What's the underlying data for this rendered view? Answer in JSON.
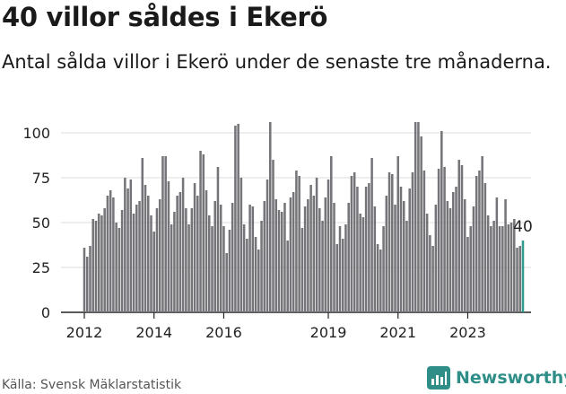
{
  "header": {
    "title": "40 villor såldes i Ekerö",
    "subtitle": "Antal sålda villor i Ekerö under de senaste tre månaderna."
  },
  "footer": {
    "source": "Källa: Svensk Mäklarstatistik",
    "brand": "Newsworthy"
  },
  "colors": {
    "bar": "#757478",
    "highlight": "#2f9c8f",
    "axis": "#222222",
    "text": "#222222",
    "brand": "#2f8f88"
  },
  "chart_data": {
    "type": "bar",
    "x_start": "2012-01",
    "frequency": "monthly",
    "values": [
      36,
      31,
      37,
      52,
      51,
      55,
      54,
      58,
      65,
      68,
      64,
      50,
      47,
      57,
      75,
      69,
      74,
      55,
      60,
      62,
      86,
      71,
      65,
      54,
      45,
      58,
      63,
      87,
      87,
      73,
      49,
      56,
      65,
      67,
      75,
      58,
      49,
      58,
      72,
      65,
      90,
      88,
      68,
      54,
      48,
      62,
      81,
      60,
      48,
      33,
      46,
      61,
      104,
      105,
      75,
      49,
      41,
      60,
      59,
      42,
      35,
      51,
      62,
      74,
      106,
      85,
      63,
      57,
      56,
      61,
      40,
      64,
      67,
      79,
      76,
      47,
      59,
      63,
      71,
      65,
      75,
      58,
      51,
      64,
      74,
      87,
      61,
      38,
      48,
      41,
      49,
      61,
      76,
      78,
      70,
      55,
      53,
      70,
      72,
      86,
      59,
      38,
      35,
      48,
      65,
      78,
      77,
      60,
      87,
      70,
      62,
      51,
      69,
      78,
      106,
      106,
      98,
      79,
      55,
      43,
      37,
      60,
      80,
      101,
      81,
      62,
      58,
      67,
      70,
      85,
      82,
      63,
      42,
      48,
      59,
      76,
      79,
      87,
      72,
      54,
      48,
      51,
      64,
      48,
      48,
      63,
      49,
      50,
      52,
      36,
      37,
      40
    ],
    "highlight_last": 1,
    "last_label": "40",
    "xticks": [
      "2012",
      "2014",
      "2016",
      "2019",
      "2021",
      "2023"
    ],
    "yticks": [
      0,
      25,
      50,
      75,
      100
    ],
    "ylim": [
      0,
      110
    ]
  }
}
